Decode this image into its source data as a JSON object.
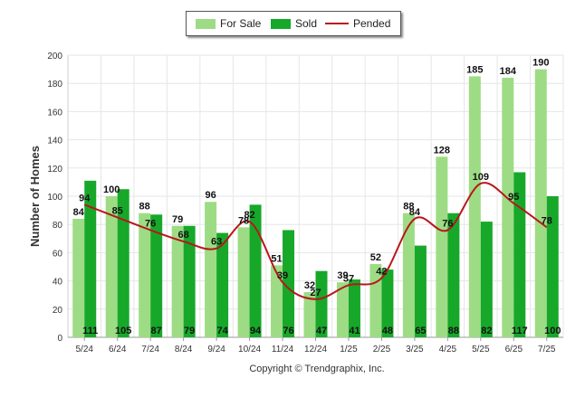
{
  "legend": {
    "for_sale": "For Sale",
    "sold": "Sold",
    "pended": "Pended"
  },
  "copyright": "Copyright © Trendgraphix, Inc.",
  "colors": {
    "for_sale": "#9ddc84",
    "sold": "#17a82a",
    "pended": "#b8161b",
    "grid": "#e6e6e6",
    "axis": "#555555"
  },
  "chart_data": {
    "type": "bar",
    "categories": [
      "5/24",
      "6/24",
      "7/24",
      "8/24",
      "9/24",
      "10/24",
      "11/24",
      "12/24",
      "1/25",
      "2/25",
      "3/25",
      "4/25",
      "5/25",
      "6/25",
      "7/25"
    ],
    "series": [
      {
        "name": "For Sale",
        "type": "bar",
        "values": [
          84,
          100,
          88,
          79,
          96,
          78,
          51,
          32,
          39,
          52,
          88,
          128,
          185,
          184,
          190
        ]
      },
      {
        "name": "Sold",
        "type": "bar",
        "values": [
          111,
          105,
          87,
          79,
          74,
          94,
          76,
          47,
          41,
          48,
          65,
          88,
          82,
          117,
          100
        ]
      },
      {
        "name": "Pended",
        "type": "line",
        "values": [
          94,
          85,
          76,
          68,
          63,
          82,
          39,
          27,
          37,
          42,
          84,
          76,
          109,
          95,
          78
        ]
      }
    ],
    "title": "",
    "xlabel": "",
    "ylabel": "Number of Homes",
    "ylim": [
      0,
      200
    ],
    "yticks": [
      0,
      20,
      40,
      60,
      80,
      100,
      120,
      140,
      160,
      180,
      200
    ],
    "grid": true,
    "legend_position": "top-center"
  }
}
